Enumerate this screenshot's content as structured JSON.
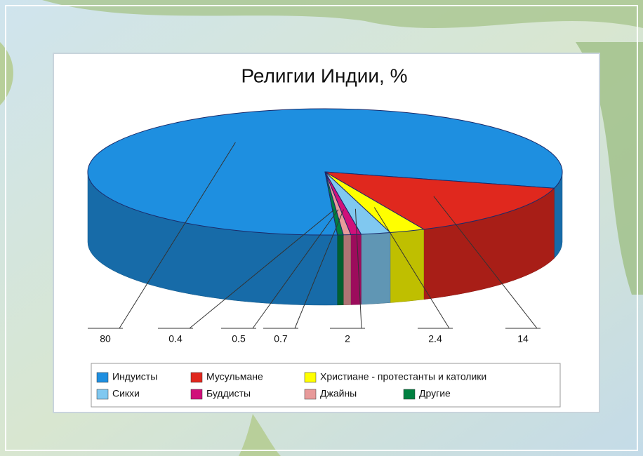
{
  "chart_data": {
    "type": "pie",
    "title": "Религии Индии, %",
    "categories": [
      "Индуисты",
      "Мусульмане",
      "Христиане - протестанты и католики",
      "Сикхи",
      "Буддисты",
      "Джайны",
      "Другие"
    ],
    "values": [
      80,
      14,
      2.4,
      2,
      0.7,
      0.5,
      0.4
    ],
    "colors": [
      "#1e8fe0",
      "#e0281e",
      "#ffff00",
      "#80c8f0",
      "#d0107a",
      "#e89a9a",
      "#008040"
    ],
    "legend": "bottom"
  }
}
